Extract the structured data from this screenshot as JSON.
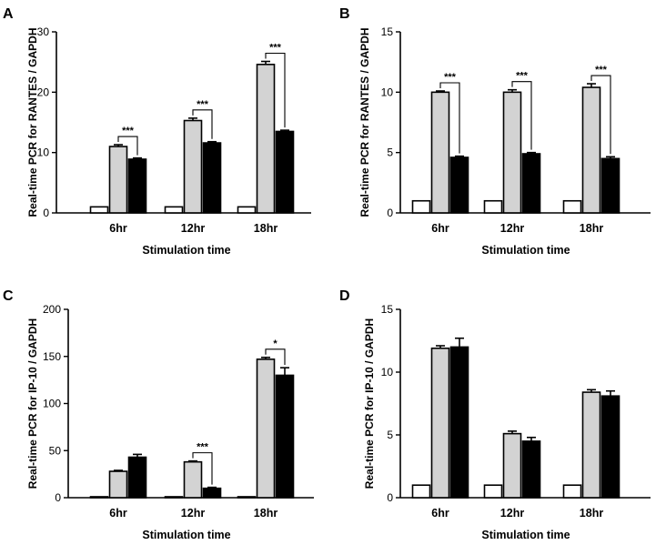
{
  "chart_data": [
    {
      "type": "bar",
      "panel": "A",
      "xlabel": "Stimulation time",
      "ylabel": "Real-time PCR for RANTES / GAPDH",
      "ylim": [
        0,
        30
      ],
      "yticks": [
        0,
        10,
        20,
        30
      ],
      "categories": [
        "6hr",
        "12hr",
        "18hr"
      ],
      "series": [
        {
          "name": "white",
          "color": "#ffffff",
          "values": [
            1.0,
            1.0,
            1.0
          ],
          "errors": [
            0,
            0,
            0
          ]
        },
        {
          "name": "gray",
          "color": "#d3d3d3",
          "values": [
            11.0,
            15.3,
            24.6
          ],
          "errors": [
            0.3,
            0.4,
            0.5
          ]
        },
        {
          "name": "black",
          "color": "#000000",
          "values": [
            8.9,
            11.6,
            13.5
          ],
          "errors": [
            0.2,
            0.2,
            0.2
          ]
        }
      ],
      "significance": [
        {
          "category": 0,
          "label": "***"
        },
        {
          "category": 1,
          "label": "***"
        },
        {
          "category": 2,
          "label": "***"
        }
      ]
    },
    {
      "type": "bar",
      "panel": "B",
      "xlabel": "Stimulation time",
      "ylabel": "Real-time PCR for RANTES / GAPDH",
      "ylim": [
        0,
        15
      ],
      "yticks": [
        0,
        5,
        10,
        15
      ],
      "categories": [
        "6hr",
        "12hr",
        "18hr"
      ],
      "series": [
        {
          "name": "white",
          "color": "#ffffff",
          "values": [
            1.0,
            1.0,
            1.0
          ],
          "errors": [
            0,
            0,
            0
          ]
        },
        {
          "name": "gray",
          "color": "#d3d3d3",
          "values": [
            10.0,
            10.0,
            10.4
          ],
          "errors": [
            0.1,
            0.2,
            0.3
          ]
        },
        {
          "name": "black",
          "color": "#000000",
          "values": [
            4.6,
            4.9,
            4.5
          ],
          "errors": [
            0.1,
            0.1,
            0.15
          ]
        }
      ],
      "significance": [
        {
          "category": 0,
          "label": "***"
        },
        {
          "category": 1,
          "label": "***"
        },
        {
          "category": 2,
          "label": "***"
        }
      ]
    },
    {
      "type": "bar",
      "panel": "C",
      "xlabel": "Stimulation time",
      "ylabel": "Real-time PCR for IP-10 / GAPDH",
      "ylim": [
        0,
        200
      ],
      "yticks": [
        0,
        50,
        100,
        150,
        200
      ],
      "categories": [
        "6hr",
        "12hr",
        "18hr"
      ],
      "series": [
        {
          "name": "white",
          "color": "#ffffff",
          "values": [
            1.0,
            1.0,
            1.0
          ],
          "errors": [
            0,
            0,
            0
          ]
        },
        {
          "name": "gray",
          "color": "#d3d3d3",
          "values": [
            28,
            38,
            147
          ],
          "errors": [
            1,
            1,
            2
          ]
        },
        {
          "name": "black",
          "color": "#000000",
          "values": [
            43,
            10,
            130
          ],
          "errors": [
            3,
            1,
            8
          ]
        }
      ],
      "significance": [
        {
          "category": 1,
          "label": "***"
        },
        {
          "category": 2,
          "label": "*"
        }
      ]
    },
    {
      "type": "bar",
      "panel": "D",
      "xlabel": "Stimulation time",
      "ylabel": "Real-time PCR for IP-10 / GAPDH",
      "ylim": [
        0,
        15
      ],
      "yticks": [
        0,
        5,
        10,
        15
      ],
      "categories": [
        "6hr",
        "12hr",
        "18hr"
      ],
      "series": [
        {
          "name": "white",
          "color": "#ffffff",
          "values": [
            1.0,
            1.0,
            1.0
          ],
          "errors": [
            0,
            0,
            0
          ]
        },
        {
          "name": "gray",
          "color": "#d3d3d3",
          "values": [
            11.9,
            5.1,
            8.4
          ],
          "errors": [
            0.2,
            0.2,
            0.2
          ]
        },
        {
          "name": "black",
          "color": "#000000",
          "values": [
            12.0,
            4.5,
            8.1
          ],
          "errors": [
            0.7,
            0.3,
            0.4
          ]
        }
      ],
      "significance": []
    }
  ]
}
